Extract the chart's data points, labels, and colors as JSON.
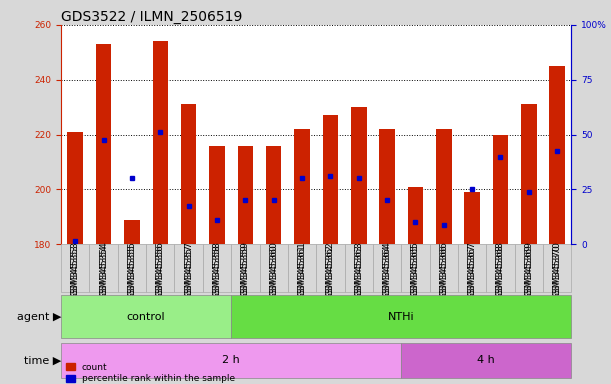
{
  "title": "GDS3522 / ILMN_2506519",
  "samples": [
    "GSM345353",
    "GSM345354",
    "GSM345355",
    "GSM345356",
    "GSM345357",
    "GSM345358",
    "GSM345359",
    "GSM345360",
    "GSM345361",
    "GSM345362",
    "GSM345363",
    "GSM345364",
    "GSM345365",
    "GSM345366",
    "GSM345367",
    "GSM345368",
    "GSM345369",
    "GSM345370"
  ],
  "bar_tops": [
    221,
    253,
    189,
    254,
    231,
    216,
    216,
    216,
    222,
    227,
    230,
    222,
    201,
    222,
    199,
    220,
    231,
    245
  ],
  "bar_bottom": 180,
  "blue_dots": [
    181,
    218,
    204,
    221,
    194,
    189,
    196,
    196,
    204,
    205,
    204,
    196,
    188,
    187,
    200,
    212,
    199,
    214
  ],
  "ylim": [
    180,
    260
  ],
  "yticks": [
    180,
    200,
    220,
    240,
    260
  ],
  "right_yticks": [
    0,
    25,
    50,
    75,
    100
  ],
  "right_ylabels": [
    "0",
    "25",
    "50",
    "75",
    "100%"
  ],
  "bar_color": "#cc2200",
  "dot_color": "#0000cc",
  "grid_color": "#000000",
  "axis_color_left": "#cc2200",
  "axis_color_right": "#0000cc",
  "agent_groups": [
    {
      "label": "control",
      "start": 0,
      "end": 5,
      "color": "#99ee88"
    },
    {
      "label": "NTHi",
      "start": 6,
      "end": 17,
      "color": "#66dd44"
    }
  ],
  "time_groups": [
    {
      "label": "2 h",
      "start": 0,
      "end": 11,
      "color": "#ee99ee"
    },
    {
      "label": "4 h",
      "start": 12,
      "end": 17,
      "color": "#cc66cc"
    }
  ],
  "legend_count_color": "#cc2200",
  "legend_dot_color": "#0000cc",
  "bg_color": "#d8d8d8",
  "plot_bg": "#ffffff",
  "bar_width": 0.55,
  "title_fontsize": 10,
  "tick_fontsize": 6.5,
  "label_fontsize": 8,
  "agent_label": "agent",
  "time_label": "time"
}
